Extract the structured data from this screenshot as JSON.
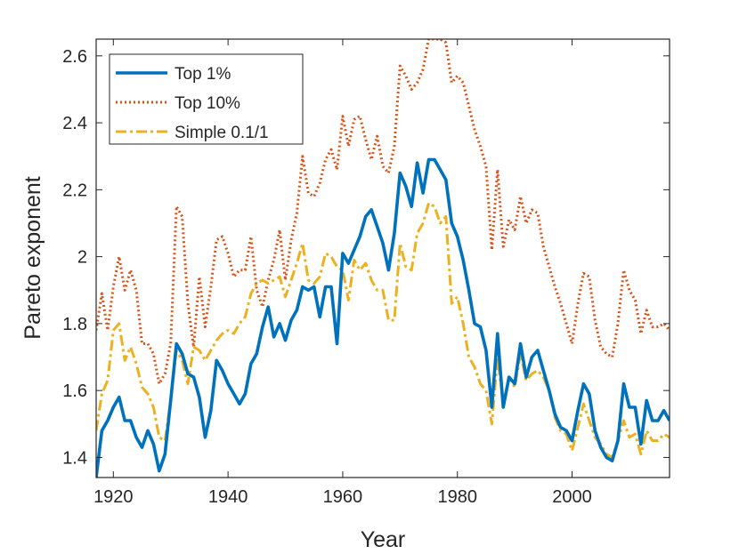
{
  "chart_data": {
    "type": "line",
    "title": "",
    "xlabel": "Year",
    "ylabel": "Pareto exponent",
    "xlim": [
      1917,
      2017
    ],
    "ylim": [
      1.34,
      2.65
    ],
    "xticks": [
      1920,
      1940,
      1960,
      1980,
      2000
    ],
    "yticks": [
      1.4,
      1.6,
      1.8,
      2,
      2.2,
      2.4,
      2.6
    ],
    "xtick_labels": [
      "1920",
      "1940",
      "1960",
      "1980",
      "2000"
    ],
    "ytick_labels": [
      "1.4",
      "1.6",
      "1.8",
      "2",
      "2.2",
      "2.4",
      "2.6"
    ],
    "grid": false,
    "legend_position": "top-left",
    "x": [
      1917,
      1918,
      1919,
      1920,
      1921,
      1922,
      1923,
      1924,
      1925,
      1926,
      1927,
      1928,
      1929,
      1930,
      1931,
      1932,
      1933,
      1934,
      1935,
      1936,
      1937,
      1938,
      1939,
      1940,
      1941,
      1942,
      1943,
      1944,
      1945,
      1946,
      1947,
      1948,
      1949,
      1950,
      1951,
      1952,
      1953,
      1954,
      1955,
      1956,
      1957,
      1958,
      1959,
      1960,
      1961,
      1962,
      1963,
      1964,
      1965,
      1966,
      1967,
      1968,
      1969,
      1970,
      1971,
      1972,
      1973,
      1974,
      1975,
      1976,
      1977,
      1978,
      1979,
      1980,
      1981,
      1982,
      1983,
      1984,
      1985,
      1986,
      1987,
      1988,
      1989,
      1990,
      1991,
      1992,
      1993,
      1994,
      1995,
      1996,
      1997,
      1998,
      1999,
      2000,
      2001,
      2002,
      2003,
      2004,
      2005,
      2006,
      2007,
      2008,
      2009,
      2010,
      2011,
      2012,
      2013,
      2014,
      2015,
      2016,
      2017
    ],
    "series": [
      {
        "name": "Top 1%",
        "color": "#0072BD",
        "style": "solid",
        "values": [
          1.34,
          1.48,
          1.51,
          1.55,
          1.58,
          1.51,
          1.51,
          1.46,
          1.43,
          1.48,
          1.44,
          1.36,
          1.41,
          1.57,
          1.74,
          1.71,
          1.65,
          1.64,
          1.58,
          1.46,
          1.54,
          1.69,
          1.66,
          1.62,
          1.59,
          1.56,
          1.59,
          1.68,
          1.71,
          1.79,
          1.85,
          1.76,
          1.8,
          1.75,
          1.81,
          1.84,
          1.91,
          1.9,
          1.91,
          1.82,
          1.91,
          1.91,
          1.74,
          2.01,
          1.98,
          2.02,
          2.06,
          2.12,
          2.14,
          2.09,
          2.04,
          1.96,
          2.07,
          2.25,
          2.21,
          2.15,
          2.28,
          2.19,
          2.29,
          2.29,
          2.26,
          2.23,
          2.1,
          2.06,
          1.99,
          1.9,
          1.8,
          1.79,
          1.72,
          1.55,
          1.77,
          1.55,
          1.64,
          1.62,
          1.74,
          1.64,
          1.7,
          1.72,
          1.66,
          1.6,
          1.53,
          1.49,
          1.48,
          1.45,
          1.54,
          1.62,
          1.59,
          1.48,
          1.43,
          1.4,
          1.39,
          1.45,
          1.62,
          1.55,
          1.55,
          1.44,
          1.57,
          1.51,
          1.51,
          1.54,
          1.51
        ]
      },
      {
        "name": "Top 10%",
        "color": "#D95319",
        "style": "dotted",
        "values": [
          1.78,
          1.89,
          1.78,
          1.91,
          2.0,
          1.9,
          1.96,
          1.9,
          1.74,
          1.74,
          1.71,
          1.62,
          1.65,
          1.74,
          2.15,
          2.12,
          1.86,
          1.73,
          1.94,
          1.79,
          1.91,
          2.05,
          2.06,
          2.01,
          1.94,
          1.96,
          1.96,
          2.06,
          1.9,
          1.85,
          1.93,
          1.99,
          2.08,
          1.93,
          2.05,
          2.13,
          2.3,
          2.19,
          2.18,
          2.22,
          2.29,
          2.32,
          2.26,
          2.42,
          2.33,
          2.41,
          2.42,
          2.35,
          2.29,
          2.36,
          2.27,
          2.25,
          2.33,
          2.57,
          2.54,
          2.5,
          2.52,
          2.56,
          2.65,
          2.65,
          2.65,
          2.64,
          2.52,
          2.54,
          2.52,
          2.45,
          2.38,
          2.33,
          2.27,
          2.02,
          2.26,
          2.03,
          2.11,
          2.08,
          2.18,
          2.1,
          2.14,
          2.13,
          2.03,
          1.97,
          1.91,
          1.86,
          1.8,
          1.74,
          1.86,
          1.95,
          1.94,
          1.81,
          1.73,
          1.71,
          1.7,
          1.8,
          1.96,
          1.9,
          1.87,
          1.77,
          1.84,
          1.79,
          1.79,
          1.8,
          1.78
        ]
      },
      {
        "name": "Simple 0.1/1",
        "color": "#EDB120",
        "style": "dash-dot",
        "values": [
          1.48,
          1.59,
          1.63,
          1.78,
          1.8,
          1.69,
          1.73,
          1.68,
          1.61,
          1.59,
          1.55,
          1.46,
          1.45,
          1.57,
          1.72,
          1.69,
          1.62,
          1.73,
          1.72,
          1.69,
          1.72,
          1.75,
          1.77,
          1.78,
          1.77,
          1.8,
          1.82,
          1.89,
          1.92,
          1.93,
          1.92,
          1.93,
          1.94,
          1.88,
          1.93,
          1.98,
          2.04,
          1.93,
          1.92,
          1.94,
          2.01,
          2.0,
          1.97,
          1.96,
          1.87,
          1.99,
          1.96,
          1.98,
          1.93,
          1.9,
          1.9,
          1.81,
          1.81,
          2.04,
          1.97,
          1.96,
          2.07,
          2.1,
          2.16,
          2.15,
          2.1,
          2.12,
          1.86,
          1.88,
          1.8,
          1.7,
          1.67,
          1.62,
          1.6,
          1.5,
          1.7,
          1.56,
          1.64,
          1.61,
          1.71,
          1.63,
          1.65,
          1.66,
          1.64,
          1.6,
          1.52,
          1.48,
          1.47,
          1.42,
          1.49,
          1.56,
          1.51,
          1.46,
          1.44,
          1.41,
          1.4,
          1.45,
          1.51,
          1.46,
          1.47,
          1.41,
          1.48,
          1.45,
          1.45,
          1.47,
          1.46
        ]
      }
    ]
  }
}
